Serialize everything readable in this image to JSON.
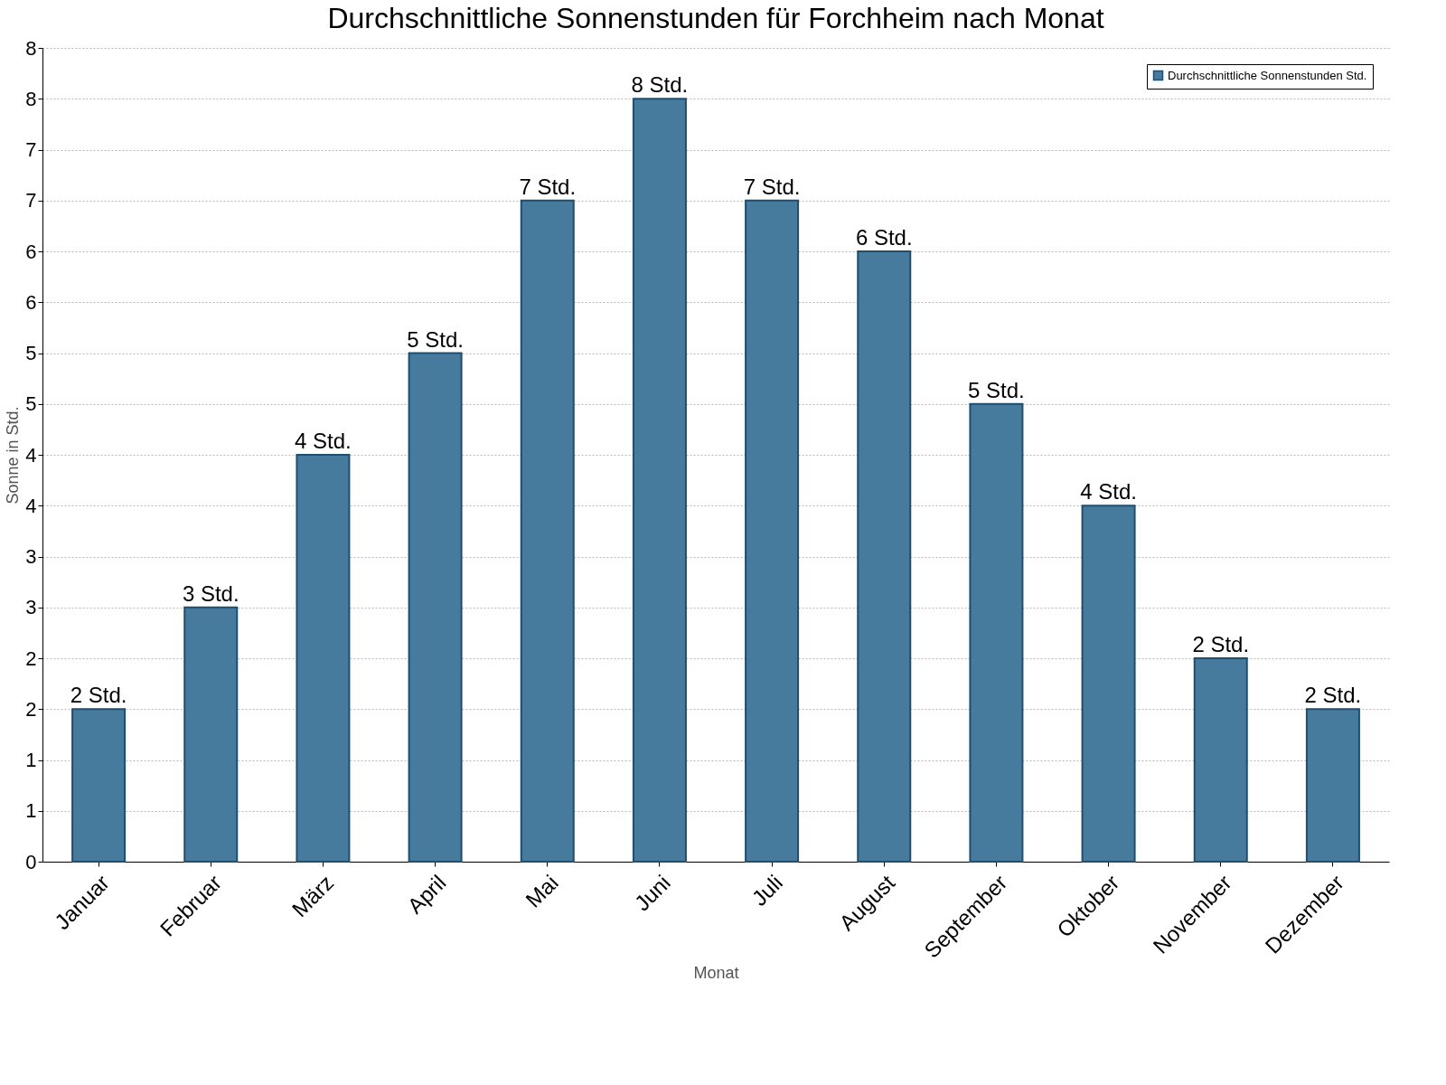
{
  "chart_data": {
    "type": "bar",
    "title": "Durchschnittliche Sonnenstunden für Forchheim nach Monat",
    "xlabel": "Monat",
    "ylabel": "Sonne in Std.",
    "categories": [
      "Januar",
      "Februar",
      "März",
      "April",
      "Mai",
      "Juni",
      "Juli",
      "August",
      "September",
      "Oktober",
      "November",
      "Dezember"
    ],
    "series": [
      {
        "name": "Durchschnittliche Sonnenstunden Std.",
        "color": "#467b9e",
        "values": [
          1.5,
          2.5,
          4.0,
          5.0,
          6.5,
          7.5,
          6.5,
          6.0,
          4.5,
          3.5,
          2.0,
          1.5
        ]
      }
    ],
    "value_labels": [
      "2 Std.",
      "3 Std.",
      "4 Std.",
      "5 Std.",
      "7 Std.",
      "8 Std.",
      "7 Std.",
      "6 Std.",
      "5 Std.",
      "4 Std.",
      "2 Std.",
      "2 Std."
    ],
    "ylim": [
      0,
      8
    ],
    "yticks": [
      0,
      {
        "value": 0.5,
        "label": "1"
      },
      1,
      {
        "value": 1.5,
        "label": "2"
      },
      2,
      {
        "value": 2.5,
        "label": "3"
      },
      3,
      {
        "value": 3.5,
        "label": "4"
      },
      4,
      {
        "value": 4.5,
        "label": "5"
      },
      5,
      {
        "value": 5.5,
        "label": "6"
      },
      6,
      {
        "value": 6.5,
        "label": "7"
      },
      7,
      {
        "value": 7.5,
        "label": "8"
      },
      8
    ],
    "grid": "y",
    "legend": "top right"
  }
}
